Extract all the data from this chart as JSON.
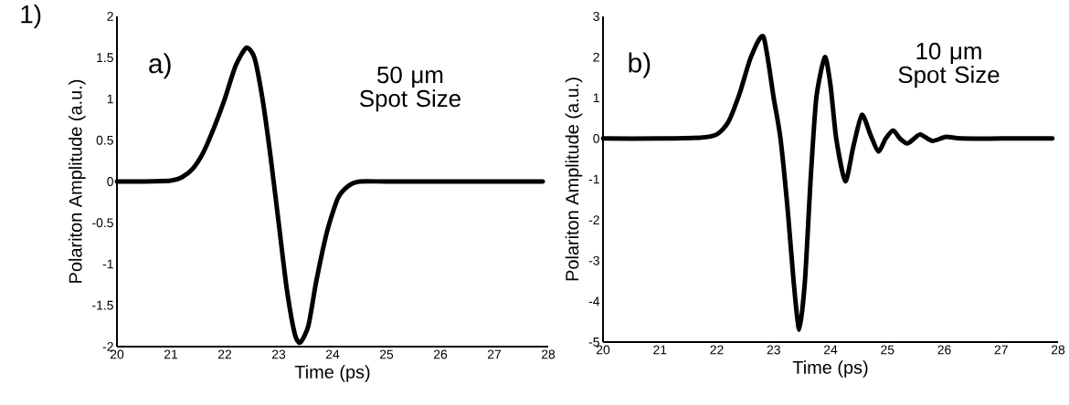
{
  "chart_data": [
    {
      "type": "line",
      "xlabel": "Time (ps)",
      "ylabel": "Polariton Amplitude (a.u.)",
      "annotations": [
        "1)",
        "a)",
        "50 μm Spot Size"
      ],
      "xlim": [
        20,
        28
      ],
      "ylim": [
        -2,
        2
      ],
      "xticks": [
        20,
        21,
        22,
        23,
        24,
        25,
        26,
        27,
        28
      ],
      "yticks": [
        -2,
        -1.5,
        -1,
        -0.5,
        0,
        0.5,
        1,
        1.5,
        2
      ],
      "grid": false,
      "series": [
        {
          "color": "#000000",
          "x": [
            20,
            20.5,
            21,
            21.2,
            21.4,
            21.6,
            21.8,
            22,
            22.2,
            22.4,
            22.55,
            22.7,
            22.85,
            23,
            23.15,
            23.3,
            23.4,
            23.55,
            23.7,
            23.9,
            24.1,
            24.3,
            24.5,
            25,
            26,
            27,
            27.9
          ],
          "values": [
            0,
            0,
            0.01,
            0.05,
            0.15,
            0.35,
            0.65,
            1.0,
            1.4,
            1.62,
            1.5,
            1.0,
            0.3,
            -0.5,
            -1.3,
            -1.85,
            -1.95,
            -1.75,
            -1.2,
            -0.6,
            -0.2,
            -0.05,
            0,
            0,
            0,
            0,
            0
          ]
        }
      ]
    },
    {
      "type": "line",
      "xlabel": "Time (ps)",
      "ylabel": "Polariton Amplitude (a.u.)",
      "annotations": [
        "b)",
        "10 μm Spot Size"
      ],
      "xlim": [
        20,
        28
      ],
      "ylim": [
        -5,
        3
      ],
      "xticks": [
        20,
        21,
        22,
        23,
        24,
        25,
        26,
        27,
        28
      ],
      "yticks": [
        -5,
        -4,
        -3,
        -2,
        -1,
        0,
        1,
        2,
        3
      ],
      "grid": false,
      "series": [
        {
          "color": "#000000",
          "x": [
            20,
            21,
            21.7,
            22,
            22.2,
            22.4,
            22.6,
            22.82,
            23,
            23.12,
            23.25,
            23.35,
            23.45,
            23.55,
            23.65,
            23.75,
            23.9,
            24.0,
            24.1,
            24.26,
            24.4,
            24.55,
            24.7,
            24.84,
            24.97,
            25.1,
            25.22,
            25.35,
            25.47,
            25.58,
            25.79,
            26.03,
            26.3,
            27,
            27.9
          ],
          "values": [
            0,
            0,
            0.02,
            0.1,
            0.4,
            1.1,
            2.0,
            2.5,
            1.0,
            0,
            -1.8,
            -3.5,
            -4.7,
            -3.5,
            -1.0,
            1.0,
            2.0,
            1.3,
            0,
            -1.05,
            -0.2,
            0.58,
            0.1,
            -0.32,
            0,
            0.2,
            0,
            -0.12,
            0,
            0.1,
            -0.06,
            0.04,
            0,
            0,
            0
          ]
        }
      ]
    }
  ]
}
